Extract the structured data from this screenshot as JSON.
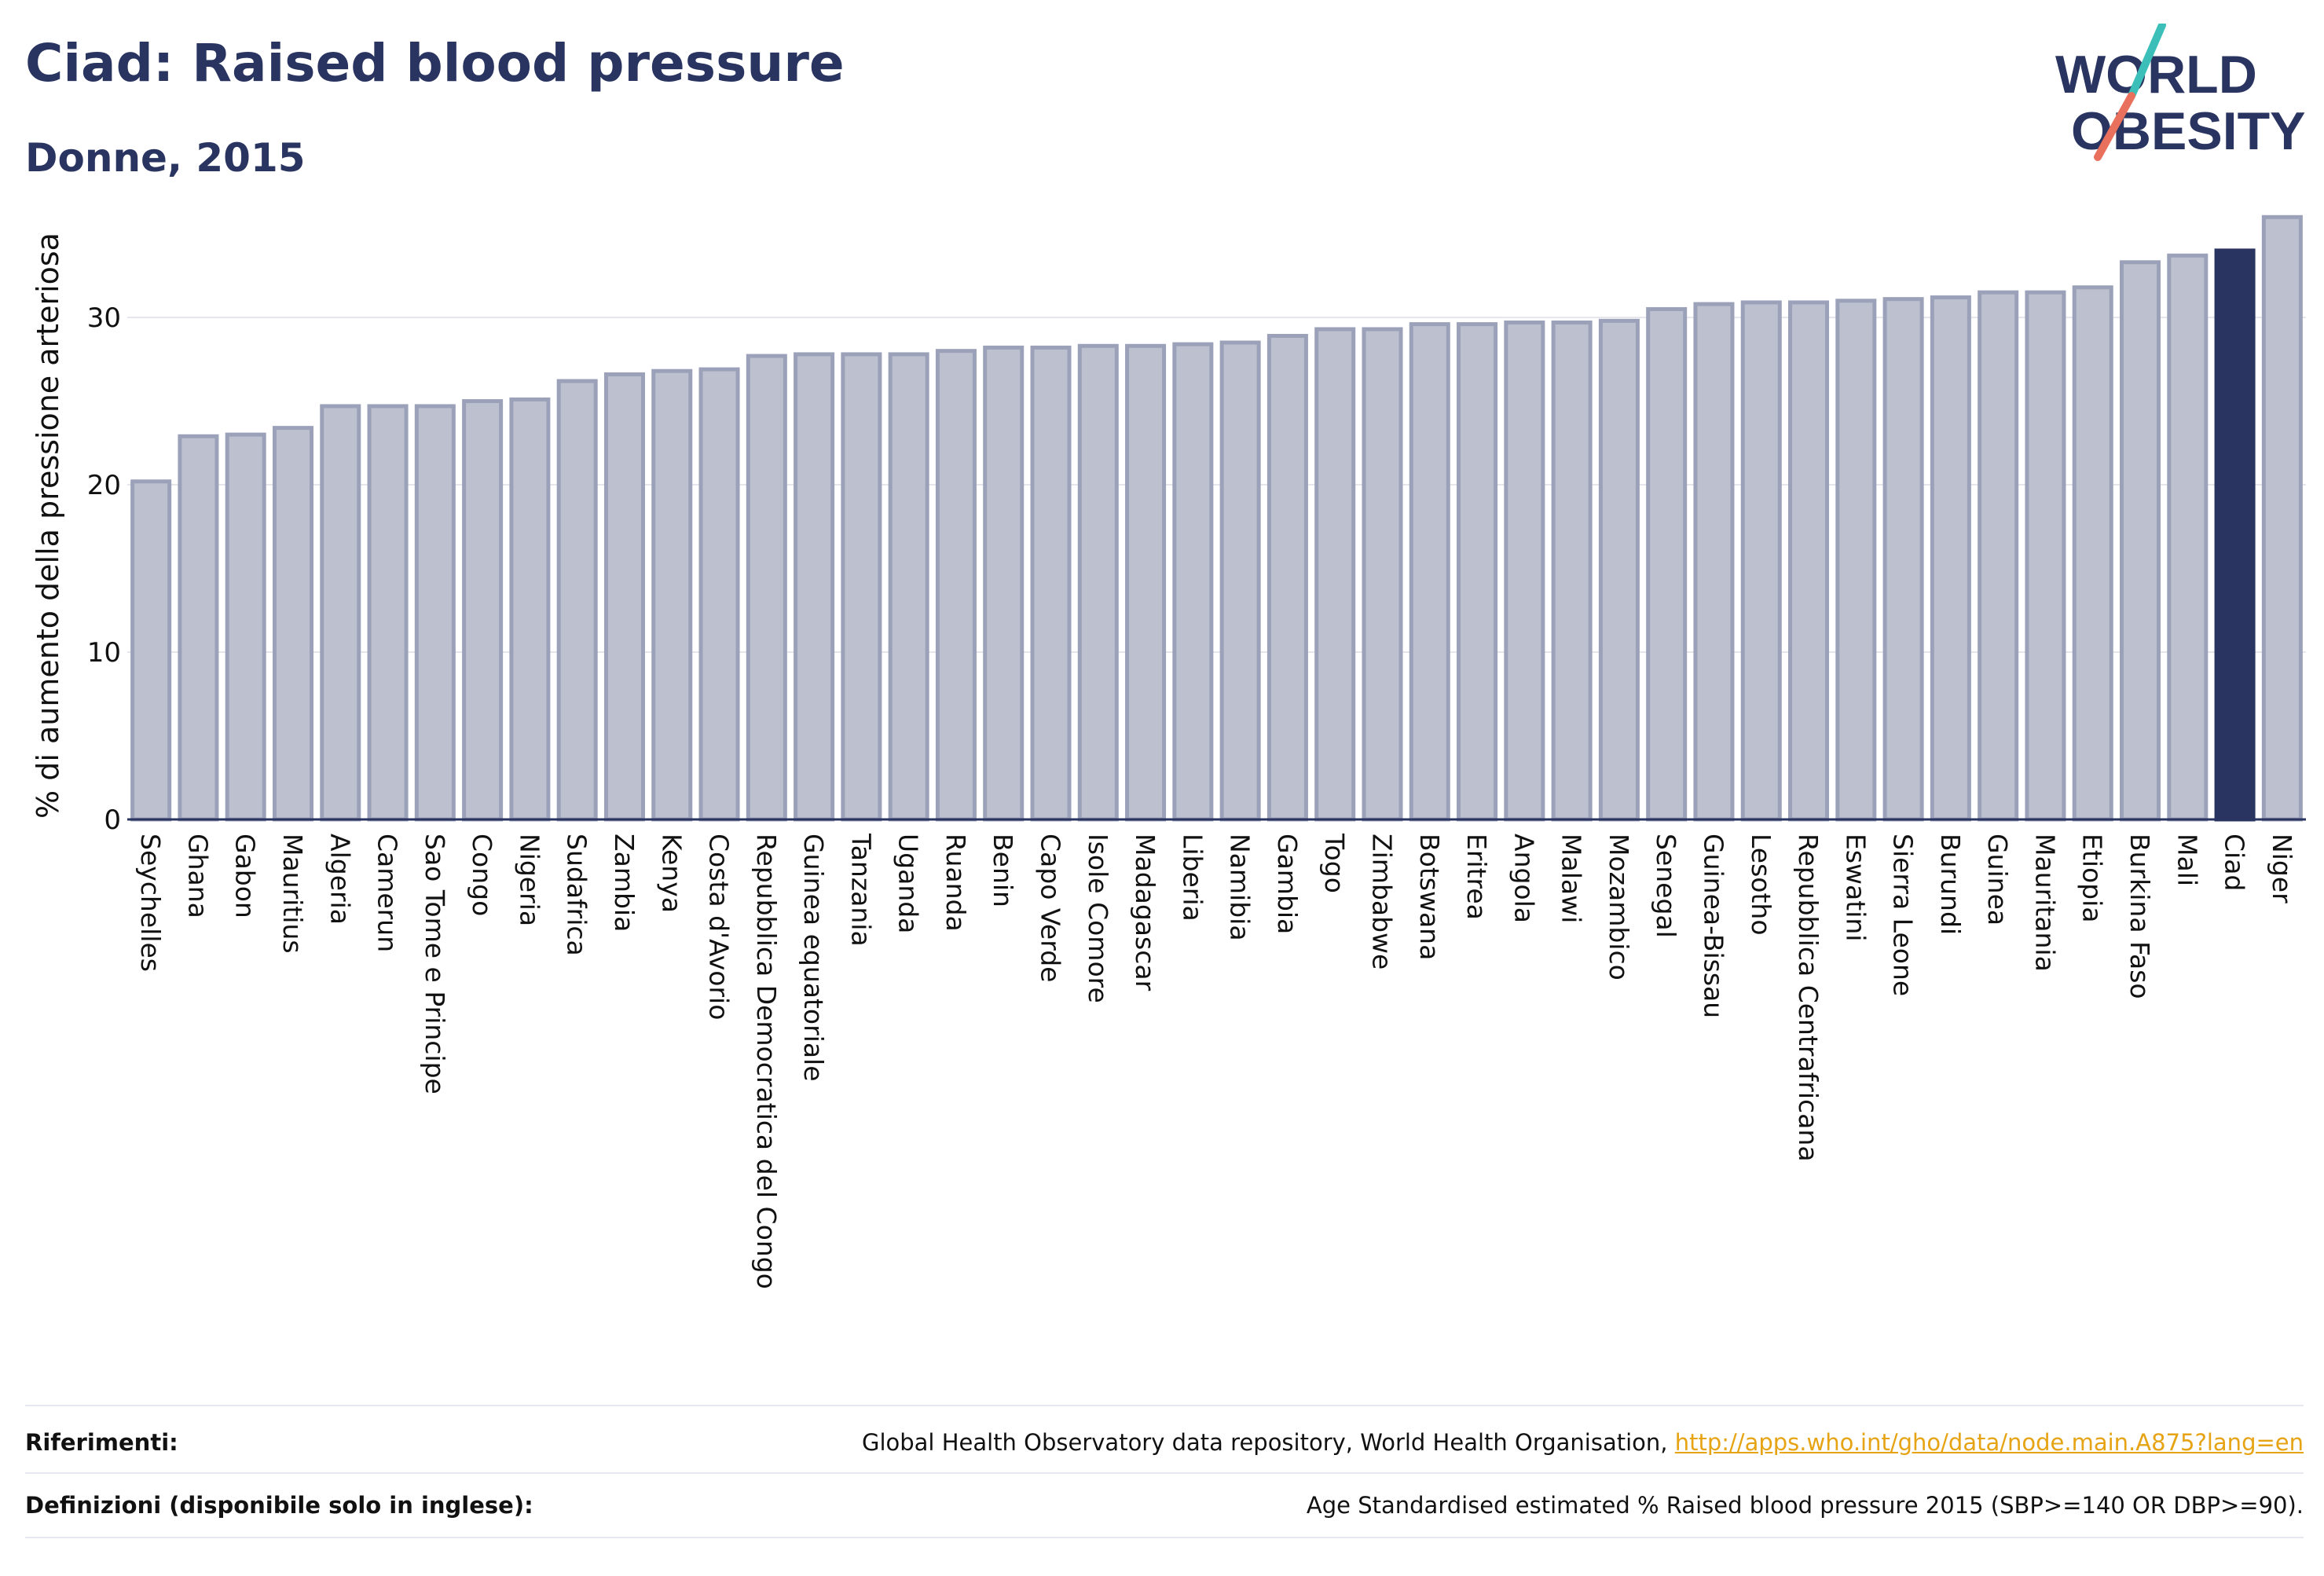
{
  "header": {
    "title": "Ciad: Raised blood pressure",
    "subtitle": "Donne, 2015"
  },
  "logo": {
    "line1": "WORLD",
    "line2": "OBESITY",
    "colors": {
      "text": "#2a3460",
      "slash_top": "#3bbfb8",
      "slash_bottom": "#e8705c"
    }
  },
  "chart_data": {
    "type": "bar",
    "ylabel": "% di aumento della pressione arteriosa",
    "ylim": [
      0,
      37
    ],
    "yticks": [
      0,
      10,
      20,
      30
    ],
    "grid": true,
    "highlight": "Ciad",
    "colors": {
      "bar": "#bdc1cf",
      "bar_stroke": "#9ba1b8",
      "highlight": "#2a3460"
    },
    "categories": [
      "Seychelles",
      "Ghana",
      "Gabon",
      "Mauritius",
      "Algeria",
      "Camerun",
      "Sao Tome e Principe",
      "Congo",
      "Nigeria",
      "Sudafrica",
      "Zambia",
      "Kenya",
      "Costa d'Avorio",
      "Repubblica Democratica del Congo",
      "Guinea equatoriale",
      "Tanzania",
      "Uganda",
      "Ruanda",
      "Benin",
      "Capo Verde",
      "Isole Comore",
      "Madagascar",
      "Liberia",
      "Namibia",
      "Gambia",
      "Togo",
      "Zimbabwe",
      "Botswana",
      "Eritrea",
      "Angola",
      "Malawi",
      "Mozambico",
      "Senegal",
      "Guinea-Bissau",
      "Lesotho",
      "Repubblica Centrafricana",
      "Eswatini",
      "Sierra Leone",
      "Burundi",
      "Guinea",
      "Mauritania",
      "Etiopia",
      "Burkina Faso",
      "Mali",
      "Ciad",
      "Niger"
    ],
    "values": [
      20.2,
      22.9,
      23.0,
      23.4,
      24.7,
      24.7,
      24.7,
      25.0,
      25.1,
      26.2,
      26.6,
      26.8,
      26.9,
      27.7,
      27.8,
      27.8,
      27.8,
      28.0,
      28.2,
      28.2,
      28.3,
      28.3,
      28.4,
      28.5,
      28.9,
      29.3,
      29.3,
      29.6,
      29.6,
      29.7,
      29.7,
      29.8,
      30.5,
      30.8,
      30.9,
      30.9,
      31.0,
      31.1,
      31.2,
      31.5,
      31.5,
      31.8,
      33.3,
      33.7,
      34.0,
      36.0
    ]
  },
  "footer": {
    "references_label": "Riferimenti:",
    "references_text": "Global Health Observatory data repository, World Health Organisation, ",
    "references_link": "http://apps.who.int/gho/data/node.main.A875?lang=en",
    "definitions_label": "Definizioni (disponibile solo in inglese):",
    "definitions_text": "Age Standardised estimated % Raised blood pressure 2015 (SBP>=140 OR DBP>=90)."
  }
}
